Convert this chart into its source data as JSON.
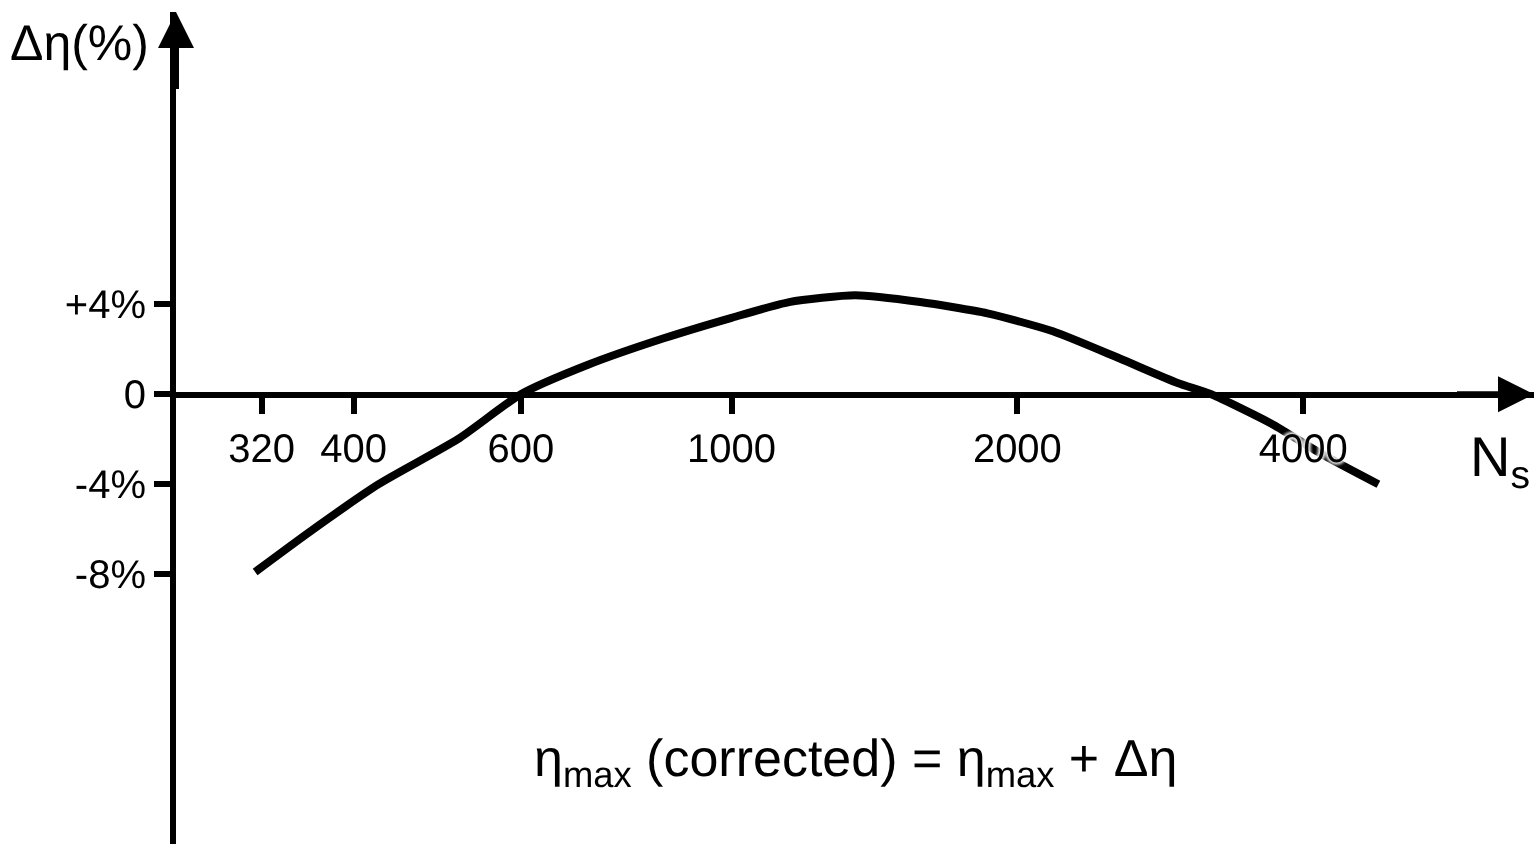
{
  "chart_data": {
    "type": "line",
    "xlabel": "N$_{s}$",
    "ylabel": "Δη(%)",
    "annotations": [
      "η$_{max}$ (corrected) = η$_{max}$ + Δη"
    ],
    "x": [
      315,
      360,
      425,
      515,
      600,
      705,
      850,
      1000,
      1150,
      1350,
      1580,
      1860,
      2180,
      2560,
      2950,
      3200,
      3700,
      4200,
      4800
    ],
    "series": [
      {
        "color": "#000000",
        "values": [
          -7.9,
          -6.1,
          -4.0,
          -2.0,
          0.0,
          1.3,
          2.5,
          3.4,
          4.1,
          4.4,
          4.1,
          3.6,
          2.8,
          1.6,
          0.5,
          0.0,
          -1.3,
          -2.7,
          -4.0
        ]
      }
    ],
    "log": "x",
    "xlim": [
      260,
      7000
    ],
    "xticks": [
      320,
      400,
      600,
      1000,
      2000,
      4000
    ],
    "ylim": [
      -20,
      17
    ],
    "yticks": [
      {
        "value": 4,
        "label": "+4%"
      },
      0,
      {
        "value": -4,
        "label": "-4%"
      },
      {
        "value": -8,
        "label": "-8%"
      }
    ],
    "line_style": "solid"
  }
}
